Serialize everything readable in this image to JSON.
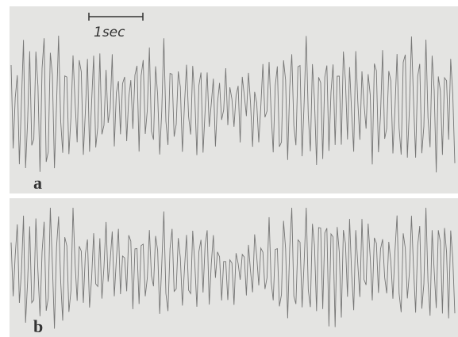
{
  "scale_bar": {
    "label": "1sec"
  },
  "panels": [
    {
      "label": "a"
    },
    {
      "label": "b"
    }
  ]
}
